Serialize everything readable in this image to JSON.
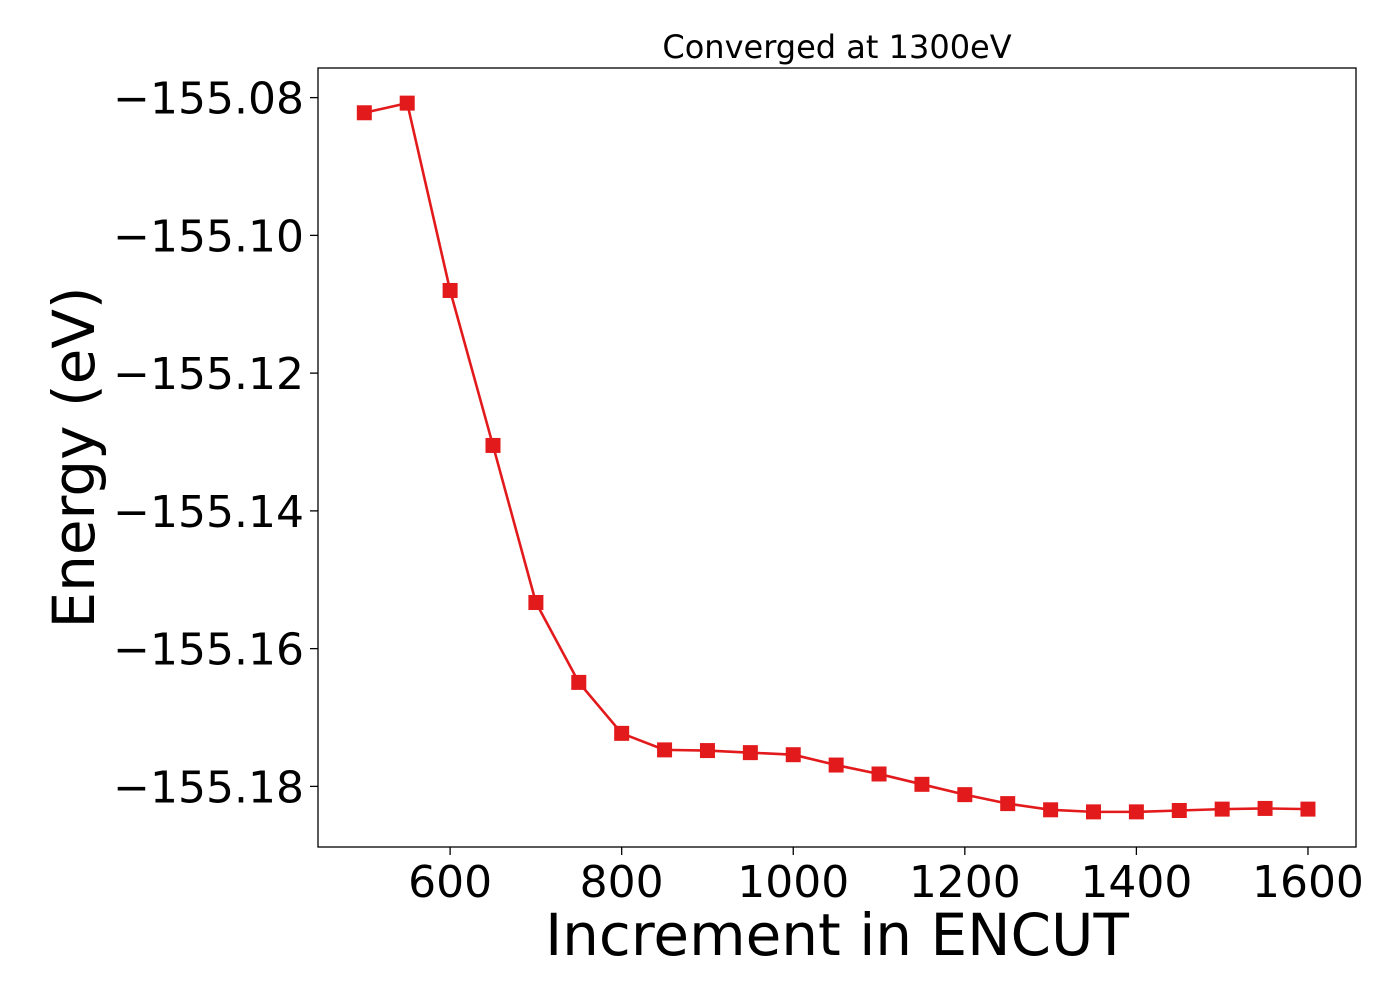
{
  "chart_data": {
    "type": "line",
    "title": "Converged at 1300eV",
    "xlabel": "Increment in ENCUT",
    "ylabel": "Energy (eV)",
    "xlim": [
      446,
      1656
    ],
    "ylim": [
      -155.1888,
      -155.0757
    ],
    "x_ticks": [
      600,
      800,
      1000,
      1200,
      1400,
      1600
    ],
    "x_tick_labels": [
      "600",
      "800",
      "1000",
      "1200",
      "1400",
      "1600"
    ],
    "y_ticks": [
      -155.08,
      -155.1,
      -155.12,
      -155.14,
      -155.16,
      -155.18
    ],
    "y_tick_labels": [
      "−155.08",
      "−155.10",
      "−155.12",
      "−155.14",
      "−155.16",
      "−155.18"
    ],
    "grid": false,
    "legend": "none",
    "series": [
      {
        "color": "#e31a1c",
        "marker": "square",
        "x": [
          500,
          550,
          600,
          650,
          700,
          750,
          800,
          850,
          900,
          950,
          1000,
          1050,
          1100,
          1150,
          1200,
          1250,
          1300,
          1350,
          1400,
          1450,
          1500,
          1550,
          1600
        ],
        "y": [
          -155.0822,
          -155.0808,
          -155.108,
          -155.1305,
          -155.1533,
          -155.1649,
          -155.1723,
          -155.1747,
          -155.1748,
          -155.1751,
          -155.1754,
          -155.1769,
          -155.1782,
          -155.1797,
          -155.1812,
          -155.1825,
          -155.1834,
          -155.1837,
          -155.1837,
          -155.1835,
          -155.1833,
          -155.1832,
          -155.1833
        ]
      }
    ]
  }
}
